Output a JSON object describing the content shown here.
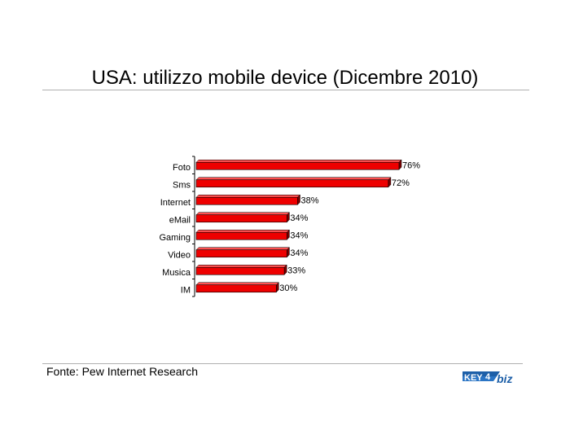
{
  "title": "USA: utilizzo mobile device (Dicembre 2010)",
  "source": "Fonte: Pew Internet Research",
  "logo": {
    "text": "KEY4biz"
  },
  "colors": {
    "bar": "#ee0000",
    "bar_top": "#ff5050",
    "bar_side": "#7a0000",
    "axis": "#000000"
  },
  "chart_data": {
    "type": "bar",
    "orientation": "horizontal",
    "categories": [
      "Foto",
      "Sms",
      "Internet",
      "eMail",
      "Gaming",
      "Video",
      "Musica",
      "IM"
    ],
    "values": [
      76,
      72,
      38,
      34,
      34,
      34,
      33,
      30
    ],
    "value_labels": [
      "76%",
      "72%",
      "38%",
      "34%",
      "34%",
      "34%",
      "33%",
      "30%"
    ],
    "xlim": [
      0,
      76
    ],
    "grid": false,
    "legend": "none"
  }
}
